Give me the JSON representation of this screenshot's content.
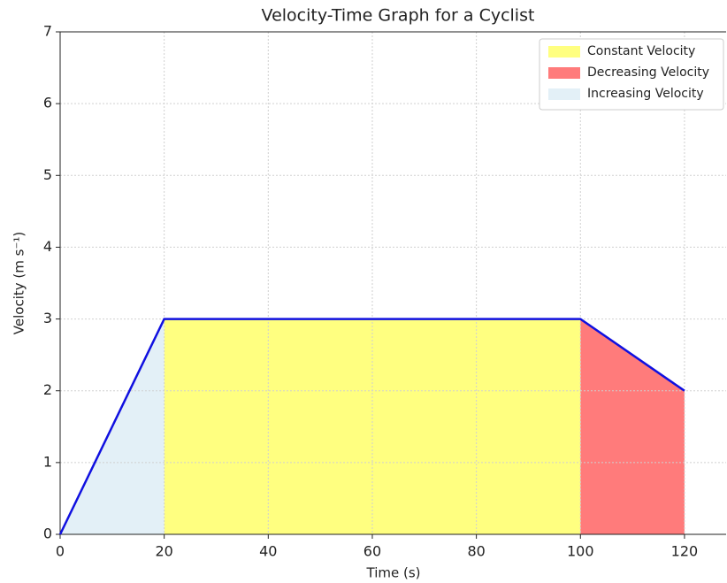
{
  "chart_data": {
    "type": "line",
    "title": "Velocity-Time Graph for a Cyclist",
    "xlabel": "Time (s)",
    "ylabel": "Velocity (m s⁻¹)",
    "x": [
      0,
      20,
      100,
      120
    ],
    "values": [
      0,
      3,
      3,
      2
    ],
    "color": "#1010e0",
    "regions": [
      {
        "name": "Constant Velocity",
        "color": "#ffff80",
        "x": [
          20,
          100
        ]
      },
      {
        "name": "Decreasing Velocity",
        "color": "#ff7b7b",
        "x": [
          100,
          120
        ]
      },
      {
        "name": "Increasing Velocity",
        "color": "#e3f0f7",
        "x": [
          0,
          20
        ]
      }
    ],
    "xlim": [
      0,
      128
    ],
    "ylim": [
      0,
      7
    ],
    "xticks": [
      0,
      20,
      40,
      60,
      80,
      100,
      120
    ],
    "yticks": [
      0,
      1,
      2,
      3,
      4,
      5,
      6,
      7
    ],
    "grid": true,
    "legend": "upper right"
  }
}
